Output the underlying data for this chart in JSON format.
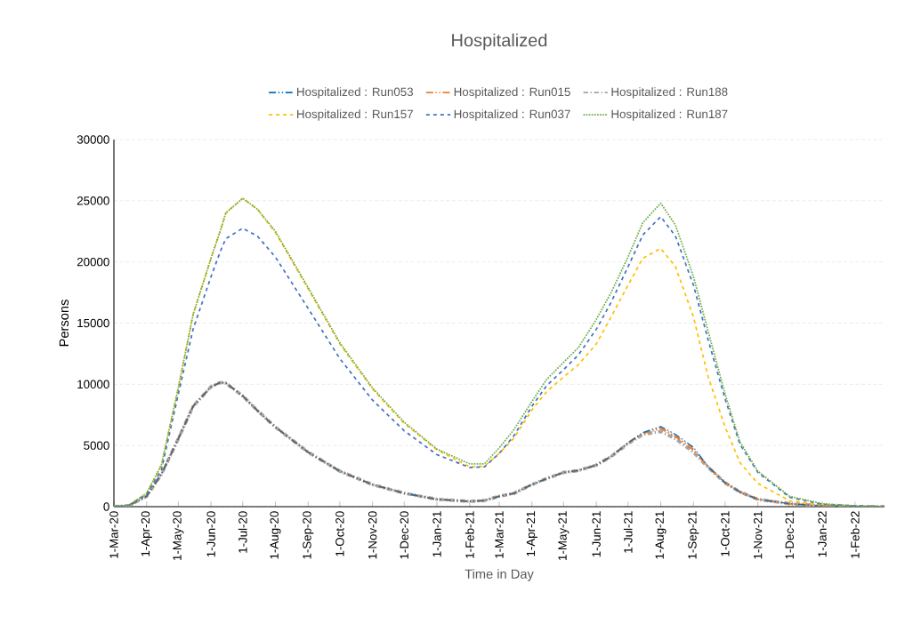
{
  "chart_data": {
    "type": "line",
    "title": "Hospitalized",
    "xlabel": "Time in Day",
    "ylabel": "Persons",
    "x": [
      "2020-03-01",
      "2020-03-15",
      "2020-04-01",
      "2020-04-15",
      "2020-05-01",
      "2020-05-15",
      "2020-06-01",
      "2020-06-10",
      "2020-06-15",
      "2020-07-01",
      "2020-07-15",
      "2020-08-01",
      "2020-09-01",
      "2020-10-01",
      "2020-11-01",
      "2020-12-01",
      "2021-01-01",
      "2021-02-01",
      "2021-02-15",
      "2021-03-01",
      "2021-03-15",
      "2021-04-01",
      "2021-04-15",
      "2021-05-01",
      "2021-05-15",
      "2021-06-01",
      "2021-06-15",
      "2021-07-01",
      "2021-07-15",
      "2021-08-01",
      "2021-08-15",
      "2021-09-01",
      "2021-09-15",
      "2021-10-01",
      "2021-10-15",
      "2021-11-01",
      "2021-12-01",
      "2022-01-01",
      "2022-02-01",
      "2022-03-01"
    ],
    "series": [
      {
        "name": "Hospitalized : Run053",
        "color": "#0070c0",
        "line_style": "dashdotdot",
        "values": [
          0,
          80,
          850,
          2650,
          5550,
          8200,
          9800,
          10150,
          10100,
          9050,
          7850,
          6500,
          4450,
          2900,
          1800,
          1100,
          600,
          430,
          500,
          850,
          1090,
          1800,
          2300,
          2800,
          2950,
          3400,
          4100,
          5200,
          6050,
          6550,
          5900,
          4850,
          3250,
          1950,
          1200,
          600,
          240,
          70,
          0,
          0
        ]
      },
      {
        "name": "Hospitalized : Run015",
        "color": "#ed7d31",
        "line_style": "dashdotdot",
        "values": [
          0,
          80,
          850,
          2650,
          5550,
          8200,
          9800,
          10150,
          10100,
          9050,
          7850,
          6500,
          4450,
          2900,
          1800,
          1100,
          600,
          430,
          500,
          850,
          1090,
          1800,
          2300,
          2800,
          2950,
          3400,
          4100,
          5200,
          6000,
          6400,
          5750,
          4650,
          3250,
          1950,
          1200,
          600,
          240,
          70,
          0,
          0
        ]
      },
      {
        "name": "Hospitalized : Run188",
        "color": "#a5a5a5",
        "line_style": "dashdot",
        "values": [
          0,
          80,
          850,
          2650,
          5550,
          8200,
          9800,
          10150,
          10100,
          9050,
          7850,
          6500,
          4450,
          2900,
          1800,
          1100,
          600,
          430,
          500,
          850,
          1090,
          1800,
          2300,
          2800,
          2950,
          3400,
          4100,
          5150,
          5900,
          6150,
          5550,
          4450,
          3200,
          1950,
          1200,
          600,
          240,
          70,
          0,
          0
        ]
      },
      {
        "name": "Hospitalized : Run157",
        "color": "#ffc000",
        "line_style": "dashed",
        "values": [
          0,
          100,
          1100,
          3400,
          9700,
          15700,
          20300,
          22600,
          24000,
          25200,
          24300,
          22400,
          17800,
          13300,
          9600,
          6800,
          4650,
          3250,
          3300,
          4350,
          5600,
          7900,
          9400,
          10600,
          11600,
          13300,
          15500,
          18100,
          20300,
          21100,
          19600,
          15500,
          10600,
          6500,
          3600,
          1900,
          480,
          120,
          50,
          0
        ]
      },
      {
        "name": "Hospitalized : Run037",
        "color": "#4472c4",
        "line_style": "dashed",
        "values": [
          0,
          100,
          1000,
          3000,
          9200,
          14500,
          18800,
          20900,
          21900,
          22750,
          22100,
          20400,
          16200,
          12100,
          8700,
          6200,
          4250,
          3200,
          3250,
          4350,
          5800,
          8200,
          9900,
          11200,
          12400,
          14500,
          16700,
          19600,
          22200,
          23700,
          22100,
          18100,
          13600,
          8800,
          5100,
          2800,
          770,
          190,
          70,
          0
        ]
      },
      {
        "name": "Hospitalized : Run187",
        "color": "#70ad47",
        "line_style": "dotted",
        "values": [
          0,
          100,
          1100,
          3400,
          9700,
          15700,
          20300,
          22600,
          24000,
          25200,
          24300,
          22500,
          17900,
          13400,
          9700,
          6900,
          4700,
          3500,
          3500,
          4800,
          6300,
          8600,
          10400,
          11800,
          13000,
          15300,
          17500,
          20400,
          23200,
          24800,
          23000,
          18800,
          14300,
          9200,
          5300,
          2900,
          850,
          240,
          70,
          0
        ]
      }
    ],
    "xlim": [
      "2020-03-01",
      "2022-03-01"
    ],
    "xticks": [
      {
        "value": "2020-03-01",
        "label": "1-Mar-20"
      },
      {
        "value": "2020-04-01",
        "label": "1-Apr-20"
      },
      {
        "value": "2020-05-01",
        "label": "1-May-20"
      },
      {
        "value": "2020-06-01",
        "label": "1-Jun-20"
      },
      {
        "value": "2020-07-01",
        "label": "1-Jul-20"
      },
      {
        "value": "2020-08-01",
        "label": "1-Aug-20"
      },
      {
        "value": "2020-09-01",
        "label": "1-Sep-20"
      },
      {
        "value": "2020-10-01",
        "label": "1-Oct-20"
      },
      {
        "value": "2020-11-01",
        "label": "1-Nov-20"
      },
      {
        "value": "2020-12-01",
        "label": "1-Dec-20"
      },
      {
        "value": "2021-01-01",
        "label": "1-Jan-21"
      },
      {
        "value": "2021-02-01",
        "label": "1-Feb-21"
      },
      {
        "value": "2021-03-01",
        "label": "1-Mar-21"
      },
      {
        "value": "2021-04-01",
        "label": "1-Apr-21"
      },
      {
        "value": "2021-05-01",
        "label": "1-May-21"
      },
      {
        "value": "2021-06-01",
        "label": "1-Jun-21"
      },
      {
        "value": "2021-07-01",
        "label": "1-Jul-21"
      },
      {
        "value": "2021-08-01",
        "label": "1-Aug-21"
      },
      {
        "value": "2021-09-01",
        "label": "1-Sep-21"
      },
      {
        "value": "2021-10-01",
        "label": "1-Oct-21"
      },
      {
        "value": "2021-11-01",
        "label": "1-Nov-21"
      },
      {
        "value": "2021-12-01",
        "label": "1-Dec-21"
      },
      {
        "value": "2022-01-01",
        "label": "1-Jan-22"
      },
      {
        "value": "2022-02-01",
        "label": "1-Feb-22"
      }
    ],
    "ylim": [
      0,
      30000
    ],
    "yticks": [
      0,
      5000,
      10000,
      15000,
      20000,
      25000,
      30000
    ],
    "grid": "y",
    "legend": "top"
  }
}
